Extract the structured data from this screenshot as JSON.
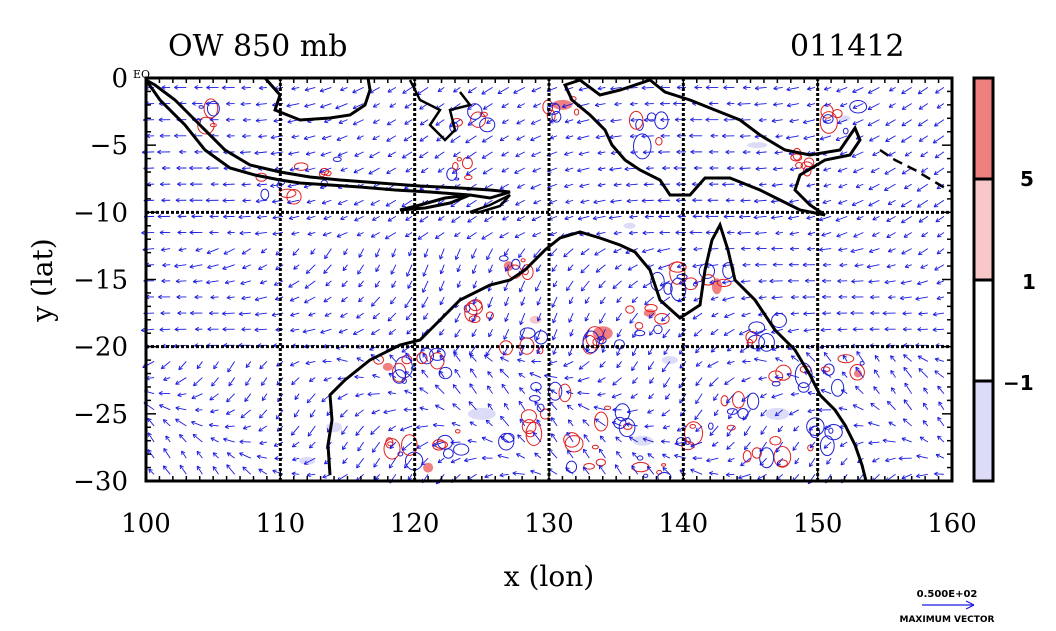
{
  "plot": {
    "title_left": "OW 850 mb",
    "title_right": "011412",
    "xlabel": "x (lon)",
    "ylabel": "y (lat)",
    "x_range": [
      100,
      160
    ],
    "y_range": [
      -30,
      0
    ],
    "x_ticks": [
      "100",
      "110",
      "120",
      "130",
      "140",
      "150",
      "160"
    ],
    "y_ticks": [
      "0",
      "−5",
      "−10",
      "−15",
      "−20",
      "−25",
      "−30"
    ],
    "eq_label": "EQ",
    "grid_lines_lon": [
      110,
      120,
      130,
      140,
      150
    ],
    "grid_lines_lat": [
      -10,
      -20
    ],
    "colors": {
      "positive_fill": "#f08080",
      "light_positive_fill": "#f8c8c8",
      "negative_fill": "#dcdcf8",
      "contour_pos": "#e02020",
      "contour_neg": "#2020d0",
      "vector": "#1a1ae0",
      "coast": "#000000"
    }
  },
  "colorbar": {
    "labels": [
      "5",
      "1",
      "−1"
    ],
    "colors": [
      "#f08080",
      "#f8c8c8",
      "#ffffff",
      "#dcdcf8"
    ]
  },
  "vector_key": {
    "value": "0.500E+02",
    "label": "MAXIMUM VECTOR"
  }
}
